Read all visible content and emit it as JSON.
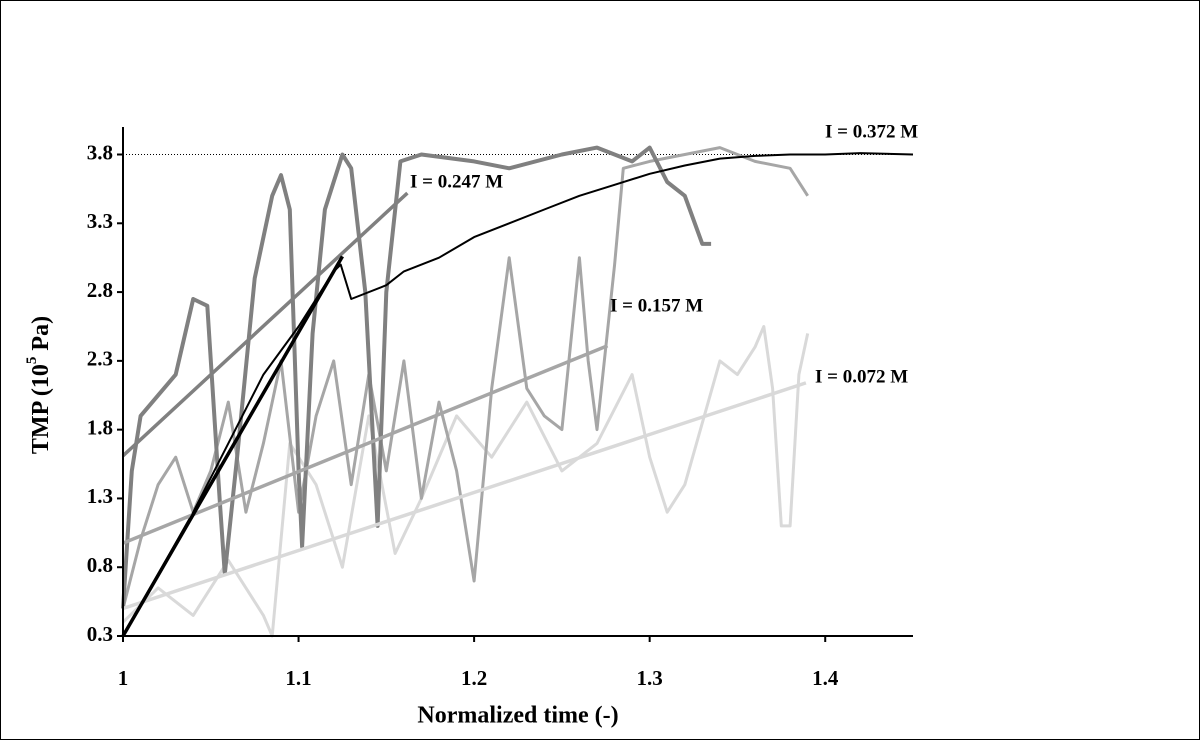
{
  "chart_data": {
    "type": "line",
    "xlabel": "Normalized time (-)",
    "ylabel": [
      "TMP (10",
      "5",
      " Pa)"
    ],
    "xlim": [
      1,
      1.45
    ],
    "xticks": [
      1,
      1.1,
      1.2,
      1.3,
      1.4
    ],
    "ylim": [
      0.3,
      4.0
    ],
    "yticks": [
      0.3,
      0.8,
      1.3,
      1.8,
      2.3,
      2.8,
      3.3,
      3.8
    ],
    "hline": 3.8,
    "series": [
      {
        "name": "I = 0.072 M",
        "color": "#d9d9d9",
        "x": [
          1.0,
          1.02,
          1.04,
          1.06,
          1.08,
          1.085,
          1.095,
          1.11,
          1.125,
          1.14,
          1.155,
          1.17,
          1.19,
          1.21,
          1.23,
          1.25,
          1.27,
          1.29,
          1.3,
          1.31,
          1.32,
          1.34,
          1.35,
          1.36,
          1.365,
          1.37,
          1.375,
          1.38,
          1.385,
          1.39
        ],
        "values": [
          0.4,
          0.65,
          0.45,
          0.85,
          0.45,
          0.3,
          1.7,
          1.4,
          0.8,
          1.9,
          0.9,
          1.3,
          1.9,
          1.6,
          2.0,
          1.5,
          1.7,
          2.2,
          1.6,
          1.2,
          1.4,
          2.3,
          2.2,
          2.4,
          2.55,
          2.1,
          1.1,
          1.1,
          2.2,
          2.5
        ],
        "trend": {
          "x": [
            1.0,
            1.389
          ],
          "values": [
            0.5,
            2.14
          ]
        }
      },
      {
        "name": "I = 0.157 M",
        "color": "#a6a6a6",
        "x": [
          1.0,
          1.01,
          1.02,
          1.03,
          1.04,
          1.05,
          1.06,
          1.07,
          1.08,
          1.09,
          1.1,
          1.11,
          1.12,
          1.13,
          1.14,
          1.15,
          1.16,
          1.17,
          1.18,
          1.19,
          1.2,
          1.21,
          1.22,
          1.23,
          1.24,
          1.25,
          1.26,
          1.265,
          1.27,
          1.28,
          1.285,
          1.3,
          1.32,
          1.34,
          1.36,
          1.38,
          1.39
        ],
        "values": [
          0.5,
          1.0,
          1.4,
          1.6,
          1.2,
          1.5,
          2.0,
          1.2,
          1.7,
          2.3,
          1.2,
          1.9,
          2.3,
          1.4,
          2.2,
          1.5,
          2.3,
          1.3,
          2.0,
          1.5,
          0.7,
          2.1,
          3.05,
          2.1,
          1.9,
          1.8,
          3.05,
          2.3,
          1.8,
          3.0,
          3.7,
          3.75,
          3.8,
          3.85,
          3.75,
          3.7,
          3.5
        ],
        "trend": {
          "x": [
            1.0,
            1.276
          ],
          "values": [
            0.975,
            2.41
          ]
        }
      },
      {
        "name": "I = 0.247 M",
        "color": "#808080",
        "x": [
          1.0,
          1.005,
          1.01,
          1.02,
          1.03,
          1.04,
          1.048,
          1.055,
          1.058,
          1.065,
          1.075,
          1.085,
          1.09,
          1.095,
          1.1,
          1.102,
          1.108,
          1.115,
          1.125,
          1.13,
          1.138,
          1.145,
          1.15,
          1.158,
          1.17,
          1.2,
          1.22,
          1.25,
          1.27,
          1.29,
          1.3,
          1.31,
          1.32,
          1.33,
          1.335
        ],
        "values": [
          0.5,
          1.5,
          1.9,
          2.05,
          2.2,
          2.75,
          2.7,
          1.3,
          0.75,
          1.6,
          2.9,
          3.5,
          3.65,
          3.4,
          1.5,
          0.95,
          2.5,
          3.4,
          3.8,
          3.7,
          2.8,
          1.1,
          2.8,
          3.75,
          3.8,
          3.75,
          3.7,
          3.8,
          3.85,
          3.75,
          3.85,
          3.6,
          3.5,
          3.15,
          3.15
        ],
        "trend": {
          "x": [
            1.0,
            1.162
          ],
          "values": [
            1.61,
            3.52
          ]
        }
      },
      {
        "name": "I = 0.372 M",
        "color": "#000000",
        "x": [
          1.0,
          1.02,
          1.04,
          1.06,
          1.08,
          1.1,
          1.12,
          1.124,
          1.13,
          1.15,
          1.16,
          1.18,
          1.2,
          1.22,
          1.24,
          1.26,
          1.28,
          1.3,
          1.32,
          1.34,
          1.36,
          1.38,
          1.4,
          1.42,
          1.45
        ],
        "values": [
          0.3,
          0.75,
          1.2,
          1.7,
          2.2,
          2.55,
          2.95,
          3.0,
          2.75,
          2.85,
          2.95,
          3.05,
          3.2,
          3.3,
          3.4,
          3.5,
          3.58,
          3.66,
          3.72,
          3.77,
          3.79,
          3.8,
          3.8,
          3.81,
          3.8
        ],
        "trend": {
          "x": [
            1.0,
            1.125
          ],
          "values": [
            0.3,
            3.06
          ]
        }
      }
    ]
  }
}
